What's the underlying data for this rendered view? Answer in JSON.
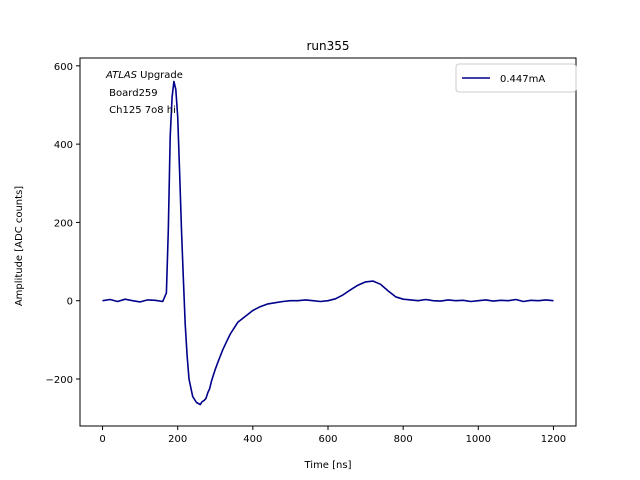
{
  "chart_data": {
    "type": "line",
    "title": "run355",
    "xlabel": "Time [ns]",
    "ylabel": "Amplitude [ADC counts]",
    "xlim": [
      -60,
      1260
    ],
    "ylim": [
      -320,
      620
    ],
    "xticks": [
      0,
      200,
      400,
      600,
      800,
      1000,
      1200
    ],
    "xtick_labels": [
      "0",
      "200",
      "400",
      "600",
      "800",
      "1000",
      "1200"
    ],
    "yticks": [
      -200,
      0,
      200,
      400,
      600
    ],
    "ytick_labels": [
      "−200",
      "0",
      "200",
      "400",
      "600"
    ],
    "grid": false,
    "legend_position": "upper right",
    "annotation": {
      "line1_italic": "ATLAS",
      "line1_rest": " Upgrade",
      "line2": " Board259",
      "line3": " Ch125 7o8 hi"
    },
    "series": [
      {
        "name": "0.447mA",
        "color": "#00008b",
        "x": [
          0,
          20,
          40,
          60,
          80,
          100,
          120,
          140,
          160,
          170,
          175,
          180,
          185,
          190,
          195,
          200,
          205,
          210,
          215,
          220,
          225,
          230,
          240,
          250,
          260,
          265,
          270,
          275,
          280,
          285,
          290,
          300,
          310,
          320,
          330,
          340,
          350,
          360,
          380,
          400,
          420,
          440,
          460,
          480,
          500,
          520,
          540,
          560,
          580,
          600,
          620,
          640,
          660,
          680,
          700,
          720,
          740,
          760,
          780,
          800,
          820,
          840,
          860,
          880,
          900,
          920,
          940,
          960,
          980,
          1000,
          1020,
          1040,
          1060,
          1080,
          1100,
          1120,
          1140,
          1160,
          1180,
          1200
        ],
        "y": [
          0,
          3,
          -2,
          4,
          0,
          -3,
          2,
          1,
          -2,
          20,
          180,
          420,
          520,
          560,
          540,
          470,
          330,
          180,
          60,
          -60,
          -140,
          -200,
          -245,
          -260,
          -265,
          -258,
          -255,
          -250,
          -235,
          -225,
          -205,
          -175,
          -150,
          -125,
          -105,
          -85,
          -70,
          -55,
          -40,
          -25,
          -15,
          -8,
          -5,
          -2,
          0,
          0,
          2,
          0,
          -2,
          0,
          5,
          15,
          28,
          40,
          48,
          50,
          42,
          25,
          10,
          4,
          2,
          0,
          3,
          0,
          -1,
          2,
          0,
          1,
          -2,
          0,
          2,
          -1,
          1,
          0,
          3,
          -2,
          1,
          0,
          2,
          0
        ]
      }
    ]
  }
}
